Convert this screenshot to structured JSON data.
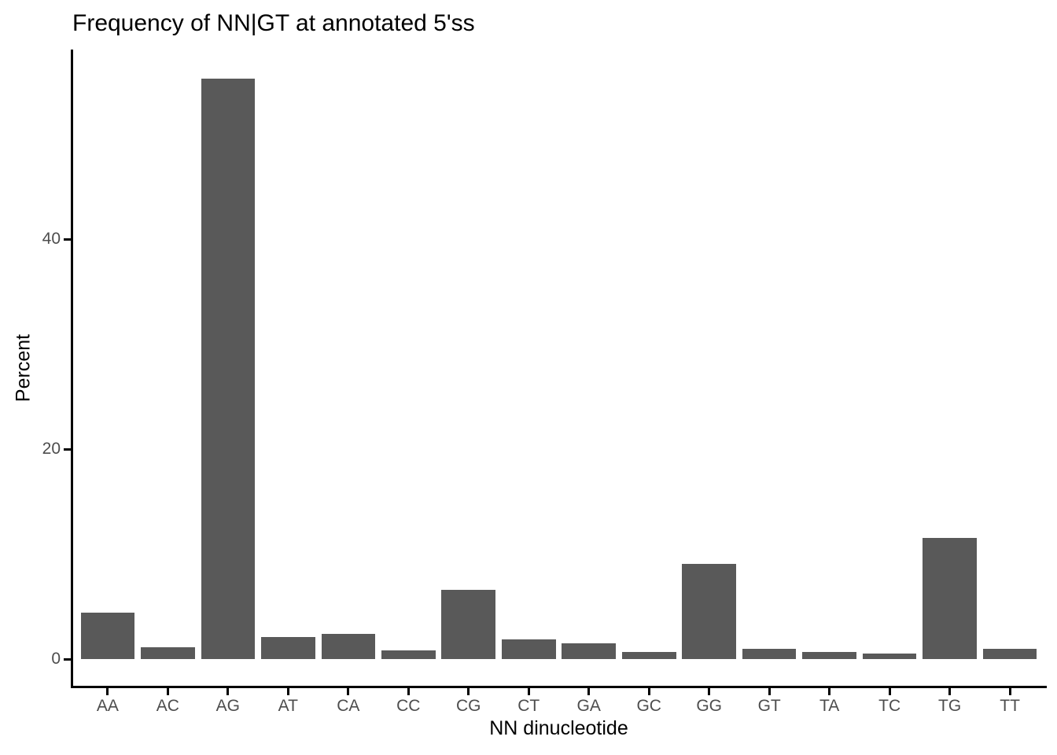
{
  "chart_data": {
    "type": "bar",
    "title": "Frequency of NN|GT at annotated 5'ss",
    "xlabel": "NN dinucleotide",
    "ylabel": "Percent",
    "categories": [
      "AA",
      "AC",
      "AG",
      "AT",
      "CA",
      "CC",
      "CG",
      "CT",
      "GA",
      "GC",
      "GG",
      "GT",
      "TA",
      "TC",
      "TG",
      "TT"
    ],
    "values": [
      4.4,
      1.1,
      55.3,
      2.1,
      2.4,
      0.8,
      6.6,
      1.9,
      1.5,
      0.7,
      9.1,
      1.0,
      0.7,
      0.5,
      11.5,
      1.0
    ],
    "y_ticks": [
      0,
      20,
      40
    ],
    "ylim": [
      0,
      58
    ],
    "grid": false,
    "legend_position": "none",
    "bar_color": "#595959",
    "axis_line_color": "#000000",
    "tick_label_color": "#4d4d4d",
    "title_color": "#000000",
    "background_color": "#ffffff"
  }
}
